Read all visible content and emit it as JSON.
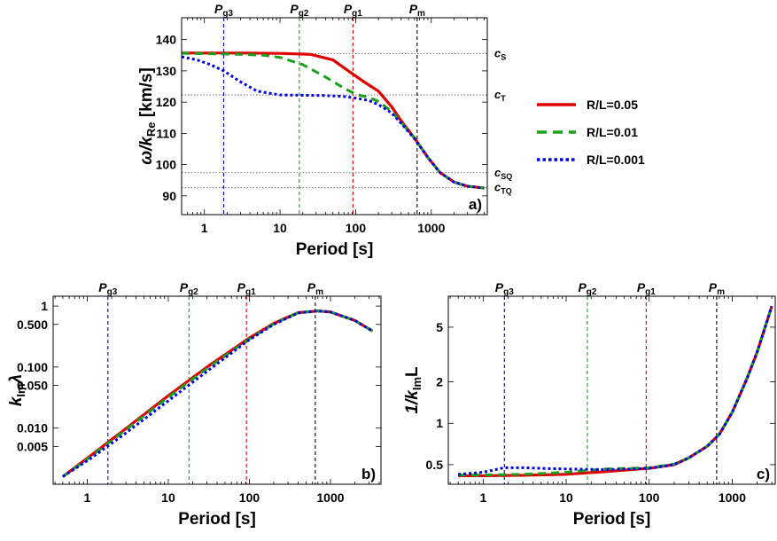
{
  "colors": {
    "red": "#e00000",
    "green": "#1aa01a",
    "blue": "#0000e6",
    "black": "#000000"
  },
  "legend": [
    {
      "label": "R/L=0.05",
      "color": "#e00000",
      "dash": "solid"
    },
    {
      "label": "R/L=0.01",
      "color": "#1aa01a",
      "dash": "dashed"
    },
    {
      "label": "R/L=0.001",
      "color": "#0000e6",
      "dash": "dotted"
    }
  ],
  "periods": [
    {
      "main": "P",
      "sub": "g3",
      "value": 1.8,
      "color": "#0000e6"
    },
    {
      "main": "P",
      "sub": "g2",
      "value": 18,
      "color": "#1aa01a"
    },
    {
      "main": "P",
      "sub": "g1",
      "value": 92,
      "color": "#e00000"
    },
    {
      "main": "P",
      "sub": "m",
      "value": 650,
      "color": "#000000"
    }
  ],
  "chart_data": [
    {
      "type": "line",
      "panel": "a)",
      "xlabel": "Period [s]",
      "ylabel_main": "ω/k",
      "ylabel_sub": "Re",
      "ylabel_tail": " [km/s]",
      "xscale": "log",
      "xlim": [
        0.5,
        5500
      ],
      "ylim": [
        84,
        147
      ],
      "xticks": [
        {
          "v": 1,
          "t": "1"
        },
        {
          "v": 10,
          "t": "10"
        },
        {
          "v": 100,
          "t": "100"
        },
        {
          "v": 1000,
          "t": "1000"
        }
      ],
      "yticks": [
        {
          "v": 90,
          "t": "90"
        },
        {
          "v": 100,
          "t": "100"
        },
        {
          "v": 110,
          "t": "110"
        },
        {
          "v": 120,
          "t": "120"
        },
        {
          "v": 130,
          "t": "130"
        },
        {
          "v": 140,
          "t": "140"
        }
      ],
      "hlines": [
        {
          "value": 135.5,
          "main": "c",
          "sub": "S"
        },
        {
          "value": 122.3,
          "main": "c",
          "sub": "T"
        },
        {
          "value": 97.4,
          "main": "c",
          "sub": "SQ"
        },
        {
          "value": 92.6,
          "main": "c",
          "sub": "TQ"
        }
      ],
      "series": [
        {
          "color": "#e00000",
          "dash": "solid",
          "x": [
            0.5,
            1,
            3,
            10,
            25,
            50,
            80,
            120,
            200,
            300,
            400,
            600,
            900,
            1300,
            2000,
            3000,
            5000
          ],
          "y": [
            135.7,
            135.7,
            135.7,
            135.6,
            135.3,
            133.5,
            130.0,
            127.0,
            123.5,
            118.5,
            114.0,
            108.5,
            102.3,
            97.5,
            94.4,
            93.1,
            92.5
          ]
        },
        {
          "color": "#1aa01a",
          "dash": "dashed",
          "x": [
            0.5,
            1,
            3,
            6,
            10,
            20,
            40,
            70,
            100,
            150,
            200,
            300,
            400,
            600,
            900,
            1300,
            2000,
            3000,
            5000
          ],
          "y": [
            135.6,
            135.5,
            135.3,
            135.0,
            134.3,
            132.0,
            128.0,
            124.5,
            122.5,
            121.5,
            120.2,
            117.0,
            113.5,
            108.5,
            102.3,
            97.5,
            94.4,
            93.1,
            92.5
          ]
        },
        {
          "color": "#0000e6",
          "dash": "dotted",
          "x": [
            0.5,
            0.8,
            1.2,
            1.8,
            3,
            5,
            10,
            20,
            40,
            70,
            100,
            150,
            200,
            300,
            400,
            600,
            900,
            1300,
            2000,
            3000,
            5000
          ],
          "y": [
            134.5,
            133.5,
            132.0,
            130.0,
            126.5,
            123.5,
            122.3,
            122.2,
            122.1,
            121.8,
            121.3,
            120.5,
            119.2,
            116.5,
            113.2,
            108.3,
            102.3,
            97.5,
            94.4,
            93.1,
            92.5
          ]
        }
      ]
    },
    {
      "type": "line",
      "panel": "b)",
      "xlabel": "Period [s]",
      "ylabel_main": "k",
      "ylabel_sub": "Im",
      "ylabel_tail": "λ",
      "xscale": "log",
      "yscale": "log",
      "xlim": [
        0.38,
        4200
      ],
      "ylim": [
        0.0012,
        1.45
      ],
      "xticks": [
        {
          "v": 1,
          "t": "1"
        },
        {
          "v": 10,
          "t": "10"
        },
        {
          "v": 100,
          "t": "100"
        },
        {
          "v": 1000,
          "t": "1000"
        }
      ],
      "yticks": [
        {
          "v": 1,
          "t": "1"
        },
        {
          "v": 0.5,
          "t": "0.500"
        },
        {
          "v": 0.1,
          "t": "0.100"
        },
        {
          "v": 0.05,
          "t": "0.050"
        },
        {
          "v": 0.01,
          "t": "0.010"
        },
        {
          "v": 0.005,
          "t": "0.005"
        }
      ],
      "series": [
        {
          "color": "#e00000",
          "dash": "solid",
          "x": [
            0.5,
            1,
            3,
            10,
            30,
            100,
            200,
            400,
            700,
            1000,
            2000,
            3300
          ],
          "y": [
            0.0016,
            0.0032,
            0.0098,
            0.034,
            0.1,
            0.3,
            0.52,
            0.78,
            0.83,
            0.8,
            0.58,
            0.39
          ]
        },
        {
          "color": "#1aa01a",
          "dash": "dashed",
          "x": [
            0.5,
            1,
            3,
            10,
            30,
            100,
            200,
            400,
            700,
            1000,
            2000,
            3300
          ],
          "y": [
            0.0016,
            0.0031,
            0.0094,
            0.032,
            0.095,
            0.29,
            0.51,
            0.78,
            0.83,
            0.8,
            0.58,
            0.39
          ]
        },
        {
          "color": "#0000e6",
          "dash": "dotted",
          "x": [
            0.5,
            1,
            3,
            10,
            30,
            100,
            200,
            400,
            700,
            1000,
            2000,
            3300
          ],
          "y": [
            0.0016,
            0.0029,
            0.0083,
            0.028,
            0.085,
            0.28,
            0.5,
            0.77,
            0.83,
            0.8,
            0.58,
            0.39
          ]
        }
      ]
    },
    {
      "type": "line",
      "panel": "c)",
      "xlabel": "Period [s]",
      "ylabel_main": "1/k",
      "ylabel_sub": "Im",
      "ylabel_tail": "L",
      "xscale": "log",
      "yscale": "log",
      "xlim": [
        0.38,
        3300
      ],
      "ylim": [
        0.36,
        8.4
      ],
      "xticks": [
        {
          "v": 1,
          "t": "1"
        },
        {
          "v": 10,
          "t": "10"
        },
        {
          "v": 100,
          "t": "100"
        },
        {
          "v": 1000,
          "t": "1000"
        }
      ],
      "yticks": [
        {
          "v": 0.5,
          "t": "0.5"
        },
        {
          "v": 1,
          "t": "1"
        },
        {
          "v": 2,
          "t": "2"
        },
        {
          "v": 5,
          "t": "5"
        }
      ],
      "series": [
        {
          "color": "#e00000",
          "dash": "solid",
          "x": [
            0.5,
            1,
            3,
            10,
            30,
            60,
            100,
            200,
            300,
            500,
            700,
            1000,
            1500,
            2000,
            3000
          ],
          "y": [
            0.415,
            0.415,
            0.418,
            0.425,
            0.445,
            0.46,
            0.47,
            0.5,
            0.56,
            0.68,
            0.83,
            1.2,
            2.1,
            3.3,
            7.1
          ]
        },
        {
          "color": "#1aa01a",
          "dash": "dashed",
          "x": [
            0.5,
            1,
            3,
            10,
            30,
            60,
            100,
            200,
            300,
            500,
            700,
            1000,
            1500,
            2000,
            3000
          ],
          "y": [
            0.42,
            0.42,
            0.425,
            0.44,
            0.465,
            0.47,
            0.475,
            0.505,
            0.56,
            0.68,
            0.83,
            1.2,
            2.1,
            3.3,
            7.1
          ]
        },
        {
          "color": "#0000e6",
          "dash": "dotted",
          "x": [
            0.5,
            1,
            1.8,
            3,
            6,
            10,
            30,
            60,
            100,
            200,
            300,
            500,
            700,
            1000,
            1500,
            2000,
            3000
          ],
          "y": [
            0.425,
            0.44,
            0.475,
            0.475,
            0.468,
            0.465,
            0.46,
            0.465,
            0.47,
            0.5,
            0.56,
            0.68,
            0.83,
            1.2,
            2.1,
            3.3,
            7.1
          ]
        }
      ]
    }
  ]
}
